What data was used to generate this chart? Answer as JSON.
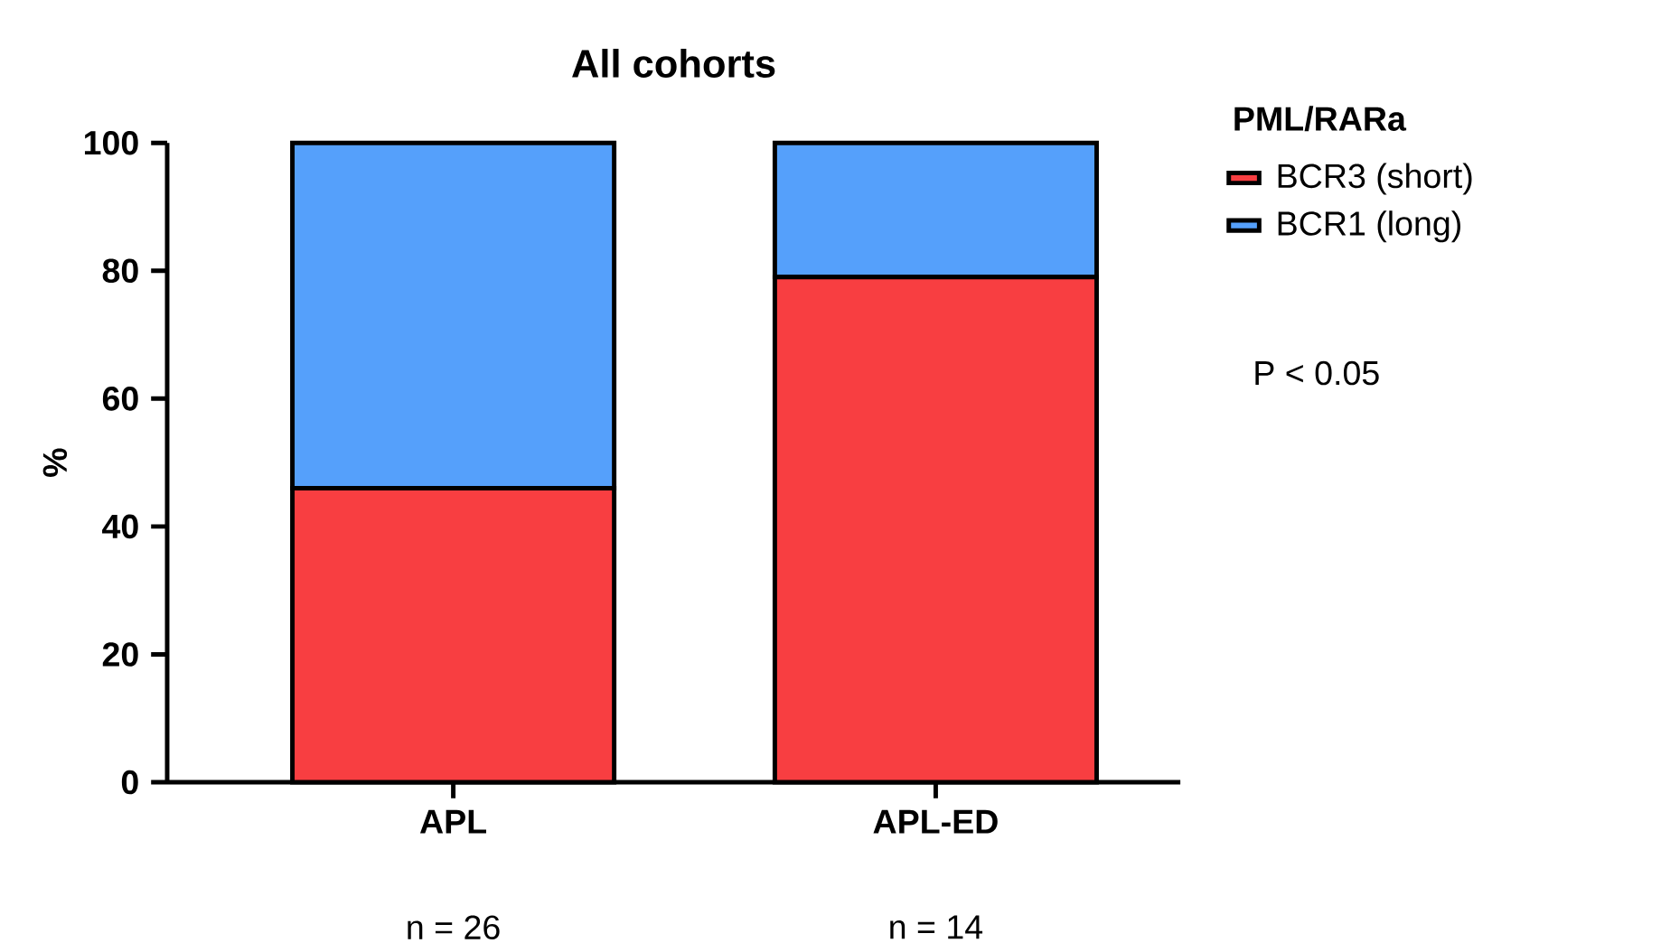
{
  "chart_data": {
    "type": "bar",
    "title": "All cohorts",
    "ylabel": "%",
    "legend_title": "PML/RARa",
    "stacked": true,
    "legend": "top right",
    "categories": [
      "APL",
      "APL-ED"
    ],
    "series": [
      {
        "name": "BCR3 (short)",
        "color": "#f83e41",
        "values": [
          46,
          79
        ]
      },
      {
        "name": "BCR1 (long)",
        "color": "#55a0fb",
        "values": [
          54,
          21
        ]
      }
    ],
    "ylim": [
      0,
      100
    ],
    "yticks": [
      0,
      20,
      40,
      60,
      80,
      100
    ],
    "grid": false,
    "annotations": [
      "P < 0.05",
      "n = 26",
      "n = 14"
    ]
  }
}
